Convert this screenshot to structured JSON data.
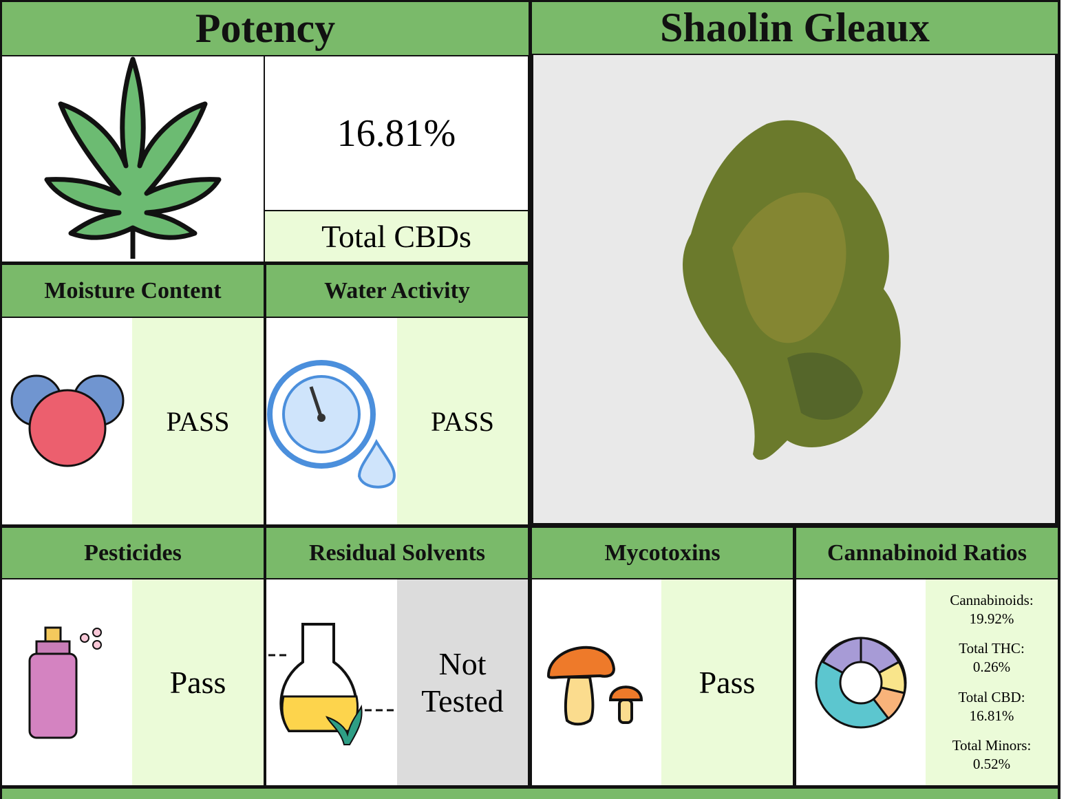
{
  "potency": {
    "title": "Potency",
    "value": "16.81%",
    "label": "Total CBDs"
  },
  "strain": {
    "name": "Shaolin Gleaux"
  },
  "tests": [
    {
      "title": "Moisture Content",
      "result": "PASS"
    },
    {
      "title": "Water Activity",
      "result": "PASS"
    },
    {
      "title": "Pesticides",
      "result": "Pass"
    },
    {
      "title": "Residual Solvents",
      "result": "Not Tested"
    },
    {
      "title": "Mycotoxins",
      "result": "Pass"
    }
  ],
  "ratios": {
    "title": "Cannabinoid Ratios",
    "items": [
      {
        "label": "Cannabinoids:",
        "value": "19.92%"
      },
      {
        "label": "Total THC:",
        "value": "0.26%"
      },
      {
        "label": "Total CBD:",
        "value": "16.81%"
      },
      {
        "label": "Total Minors:",
        "value": "0.52%"
      }
    ]
  }
}
